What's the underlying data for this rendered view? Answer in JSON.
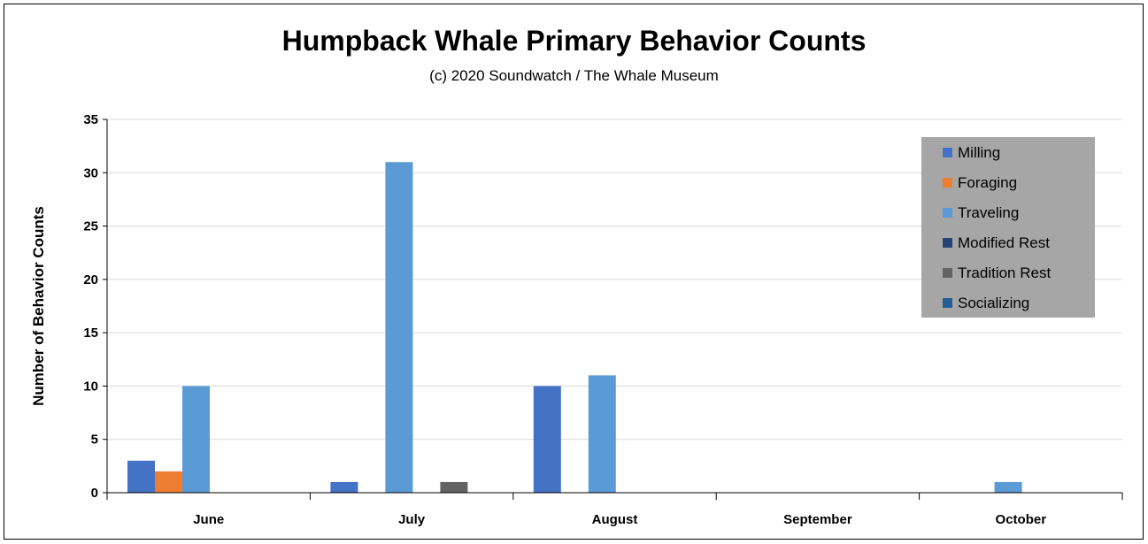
{
  "chart_data": {
    "type": "bar",
    "title": "Humpback Whale Primary Behavior Counts",
    "subtitle": "(c) 2020 Soundwatch / The Whale Museum",
    "xlabel": "",
    "ylabel": "Number of Behavior Counts",
    "ylim": [
      0,
      35
    ],
    "yticks": [
      "0",
      "5",
      "10",
      "15",
      "20",
      "25",
      "30",
      "35"
    ],
    "grid": true,
    "legend_position": "top-right",
    "legend_background": "#a6a6a6",
    "categories": [
      "June",
      "July",
      "August",
      "September",
      "October"
    ],
    "series": [
      {
        "name": "Milling",
        "color": "#4472c4",
        "values": [
          3,
          1,
          10,
          0,
          0
        ]
      },
      {
        "name": "Foraging",
        "color": "#ed7d31",
        "values": [
          2,
          0,
          0,
          0,
          0
        ]
      },
      {
        "name": "Traveling",
        "color": "#5b9bd5",
        "values": [
          10,
          31,
          11,
          0,
          1
        ]
      },
      {
        "name": "Modified Rest",
        "color": "#264478",
        "values": [
          0,
          0,
          0,
          0,
          0
        ]
      },
      {
        "name": "Tradition Rest",
        "color": "#636363",
        "values": [
          0,
          1,
          0,
          0,
          0
        ]
      },
      {
        "name": "Socializing",
        "color": "#255e91",
        "values": [
          0,
          0,
          0,
          0,
          0
        ]
      }
    ]
  }
}
